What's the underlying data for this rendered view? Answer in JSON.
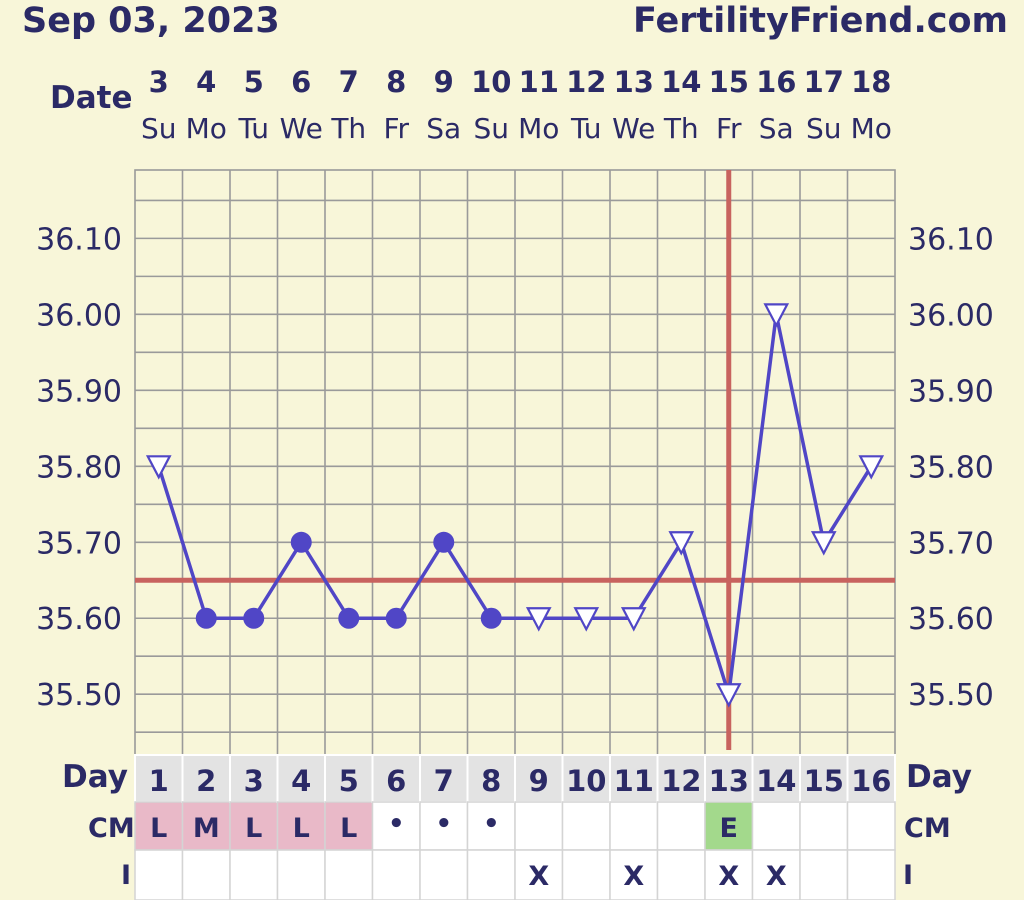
{
  "header": {
    "date": "Sep 03, 2023",
    "site": "FertilityFriend.com"
  },
  "labels": {
    "date": "Date",
    "day": "Day",
    "cm": "CM",
    "intercourse": "I"
  },
  "colors": {
    "background": "#f8f6d9",
    "grid": "#9a9a9a",
    "line": "#5046c6",
    "coverline": "#c8635f",
    "text": "#2b2a66",
    "cm_pink": "#e9b9c8",
    "cm_green": "#a3d98c",
    "day_row": "#e3e3e3",
    "cell": "#ffffff"
  },
  "chart_data": {
    "type": "line",
    "dates": [
      "3",
      "4",
      "5",
      "6",
      "7",
      "8",
      "9",
      "10",
      "11",
      "12",
      "13",
      "14",
      "15",
      "16",
      "17",
      "18"
    ],
    "weekdays": [
      "Su",
      "Mo",
      "Tu",
      "We",
      "Th",
      "Fr",
      "Sa",
      "Su",
      "Mo",
      "Tu",
      "We",
      "Th",
      "Fr",
      "Sa",
      "Su",
      "Mo"
    ],
    "cycle_days": [
      "1",
      "2",
      "3",
      "4",
      "5",
      "6",
      "7",
      "8",
      "9",
      "10",
      "11",
      "12",
      "13",
      "14",
      "15",
      "16"
    ],
    "y_ticks": [
      "36.10",
      "36.00",
      "35.90",
      "35.80",
      "35.70",
      "35.60",
      "35.50"
    ],
    "ylim": [
      35.42,
      36.19
    ],
    "series": [
      {
        "values": [
          35.8,
          35.6,
          35.6,
          35.7,
          35.6,
          35.6,
          35.7,
          35.6,
          35.6,
          35.6,
          35.6,
          35.7,
          35.5,
          36.0,
          35.7,
          35.8
        ],
        "markers": [
          "triangle",
          "circle",
          "circle",
          "circle",
          "circle",
          "circle",
          "circle",
          "circle",
          "triangle",
          "triangle",
          "triangle",
          "triangle",
          "triangle",
          "triangle",
          "triangle",
          "triangle"
        ]
      }
    ],
    "coverline": 35.65,
    "ovulation_day_index": 12,
    "cm": [
      "L",
      "M",
      "L",
      "L",
      "L",
      "•",
      "•",
      "•",
      "",
      "",
      "",
      "",
      "E",
      "",
      "",
      ""
    ],
    "cm_types": [
      "pink",
      "pink",
      "pink",
      "pink",
      "pink",
      "",
      "",
      "",
      "",
      "",
      "",
      "",
      "green",
      "",
      "",
      ""
    ],
    "intercourse": [
      "",
      "",
      "",
      "",
      "",
      "",
      "",
      "",
      "X",
      "",
      "X",
      "",
      "X",
      "X",
      "",
      ""
    ],
    "grid": true
  }
}
